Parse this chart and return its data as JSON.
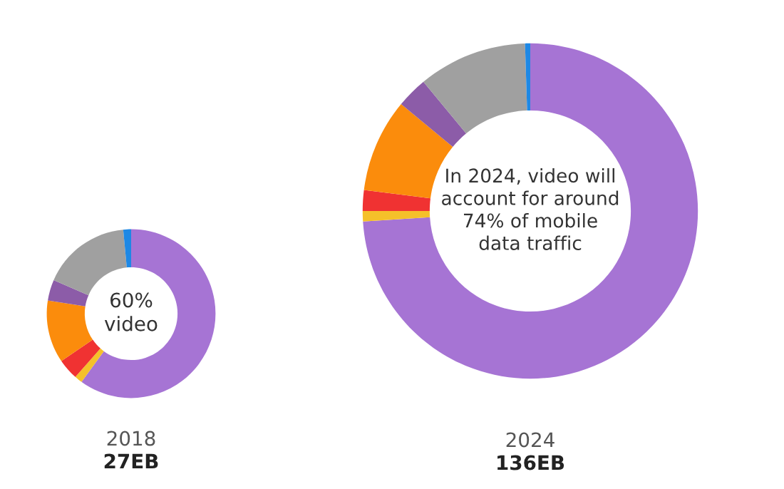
{
  "chart_data": [
    {
      "type": "donut",
      "title": "2018",
      "subtitle": "27EB",
      "annotations": [
        "60%\nvideo"
      ],
      "categories": [
        null,
        null,
        null,
        null,
        null,
        null,
        null
      ],
      "values": [
        60,
        1.5,
        4,
        12,
        4,
        17,
        1.5
      ],
      "colors": [
        "#a674d4",
        "#f5c02a",
        "#f03232",
        "#fb8c0c",
        "#8c5ca8",
        "#a0a0a0",
        "#1e88e5"
      ]
    },
    {
      "type": "donut",
      "title": "2024",
      "subtitle": "136EB",
      "annotations": [
        "In 2024, video will\naccount for around\n74% of mobile\ndata traffic"
      ],
      "categories": [
        null,
        null,
        null,
        null,
        null,
        null,
        null
      ],
      "values": [
        74,
        1,
        2,
        9,
        3,
        10.5,
        0.5
      ],
      "colors": [
        "#a674d4",
        "#f5c02a",
        "#f03232",
        "#fb8c0c",
        "#8c5ca8",
        "#a0a0a0",
        "#1e88e5"
      ]
    }
  ]
}
